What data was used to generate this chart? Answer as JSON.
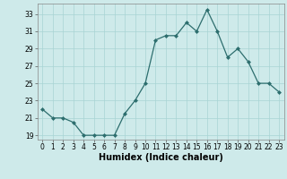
{
  "x": [
    0,
    1,
    2,
    3,
    4,
    5,
    6,
    7,
    8,
    9,
    10,
    11,
    12,
    13,
    14,
    15,
    16,
    17,
    18,
    19,
    20,
    21,
    22,
    23
  ],
  "y": [
    22,
    21,
    21,
    20.5,
    19,
    19,
    19,
    19,
    21.5,
    23,
    25,
    30,
    30.5,
    30.5,
    32,
    31,
    33.5,
    31,
    28,
    29,
    27.5,
    25,
    25,
    24
  ],
  "line_color": "#2d6e6e",
  "marker_color": "#2d6e6e",
  "bg_color": "#ceeaea",
  "grid_color": "#a8d4d4",
  "xlabel": "Humidex (Indice chaleur)",
  "xlim": [
    -0.5,
    23.5
  ],
  "ylim": [
    18.5,
    34.2
  ],
  "yticks": [
    19,
    21,
    23,
    25,
    27,
    29,
    31,
    33
  ],
  "xticks": [
    0,
    1,
    2,
    3,
    4,
    5,
    6,
    7,
    8,
    9,
    10,
    11,
    12,
    13,
    14,
    15,
    16,
    17,
    18,
    19,
    20,
    21,
    22,
    23
  ],
  "tick_fontsize": 5.5,
  "xlabel_fontsize": 7.0
}
